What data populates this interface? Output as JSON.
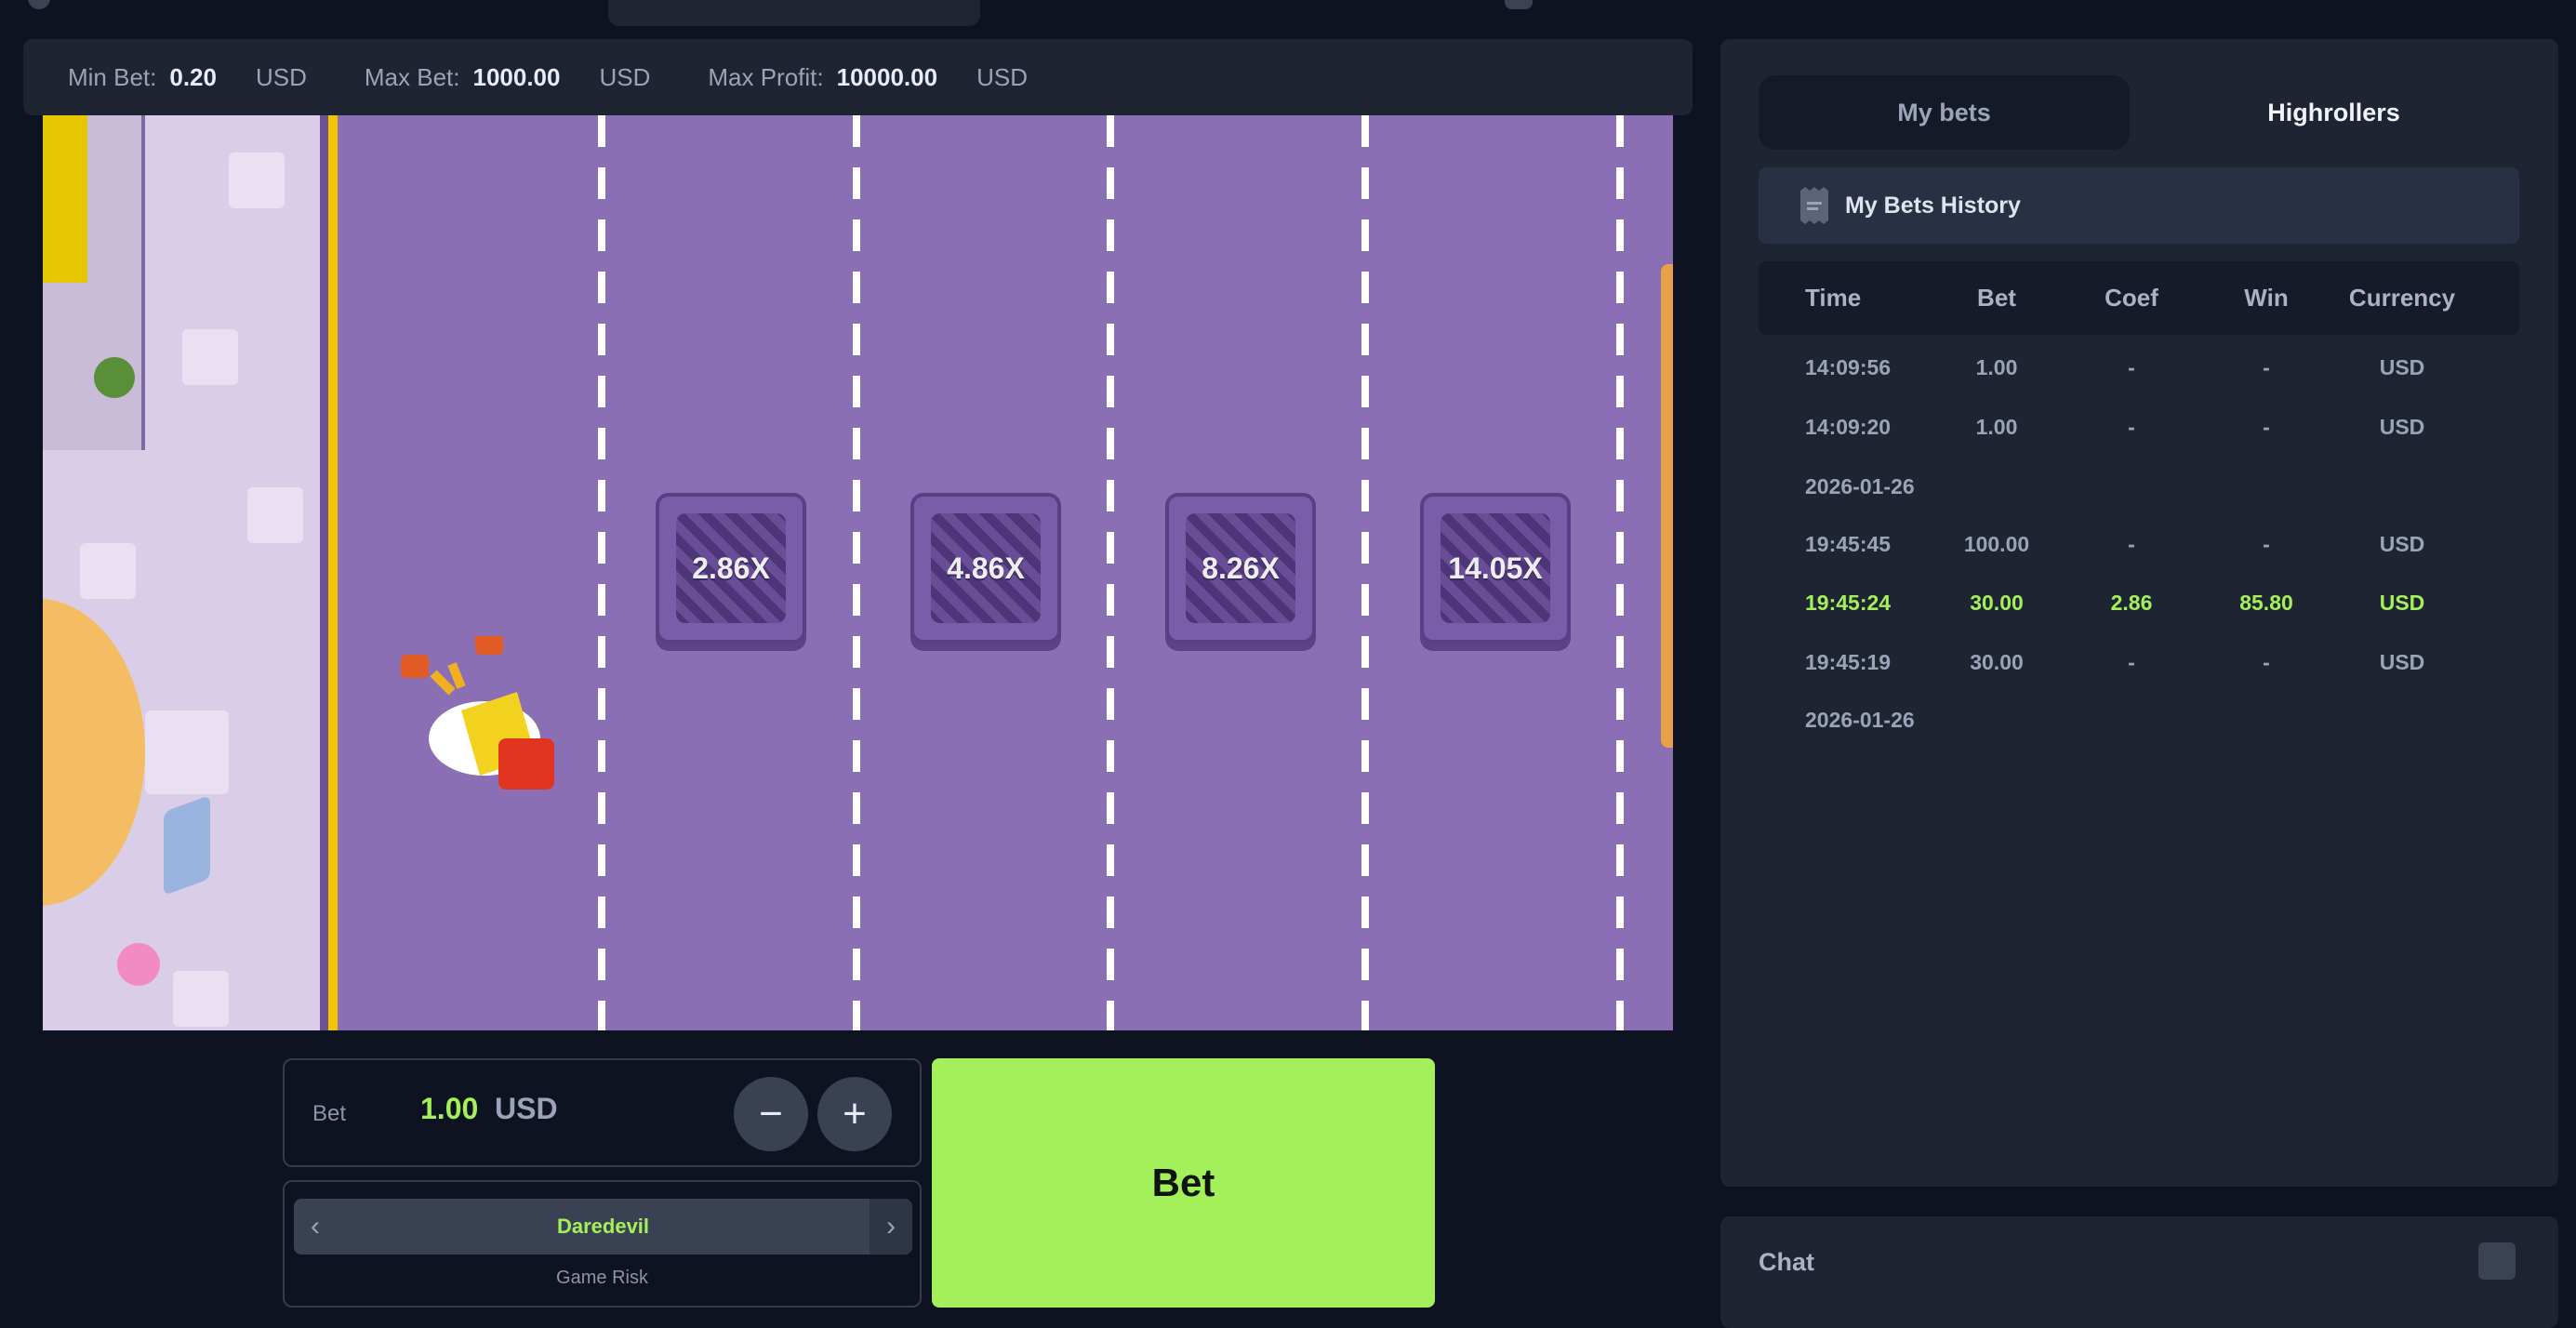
{
  "limits": {
    "min_bet_label": "Min Bet:",
    "min_bet": "0.20",
    "max_bet_label": "Max Bet:",
    "max_bet": "1000.00",
    "max_profit_label": "Max Profit:",
    "max_profit": "10000.00",
    "currency": "USD"
  },
  "game": {
    "multipliers": [
      "2.86X",
      "4.86X",
      "8.26X",
      "14.05X"
    ]
  },
  "bet_panel": {
    "label": "Bet",
    "amount": "1.00",
    "currency": "USD",
    "minus": "−",
    "plus": "+"
  },
  "risk": {
    "value": "Daredevil",
    "label": "Game Risk",
    "prev": "‹",
    "next": "›"
  },
  "bet_button": "Bet",
  "sidebar": {
    "tabs": [
      {
        "label": "My bets",
        "active": true
      },
      {
        "label": "Highrollers",
        "active": false
      }
    ],
    "history_title": "My Bets History",
    "columns": [
      "Time",
      "Bet",
      "Coef",
      "Win",
      "Currency"
    ],
    "rows": [
      {
        "time": "14:09:56",
        "bet": "1.00",
        "coef": "-",
        "win": "-",
        "currency": "USD"
      },
      {
        "time": "14:09:20",
        "bet": "1.00",
        "coef": "-",
        "win": "-",
        "currency": "USD"
      },
      {
        "date": "2026-01-26"
      },
      {
        "time": "19:45:45",
        "bet": "100.00",
        "coef": "-",
        "win": "-",
        "currency": "USD"
      },
      {
        "time": "19:45:24",
        "bet": "30.00",
        "coef": "2.86",
        "win": "85.80",
        "currency": "USD",
        "won": true
      },
      {
        "time": "19:45:19",
        "bet": "30.00",
        "coef": "-",
        "win": "-",
        "currency": "USD"
      },
      {
        "date": "2026-01-26"
      }
    ]
  },
  "chat": {
    "label": "Chat"
  },
  "colors": {
    "accent": "#a3f05b",
    "road": "#8b6fb4",
    "panel": "#1e2431",
    "background": "#0d1320"
  }
}
